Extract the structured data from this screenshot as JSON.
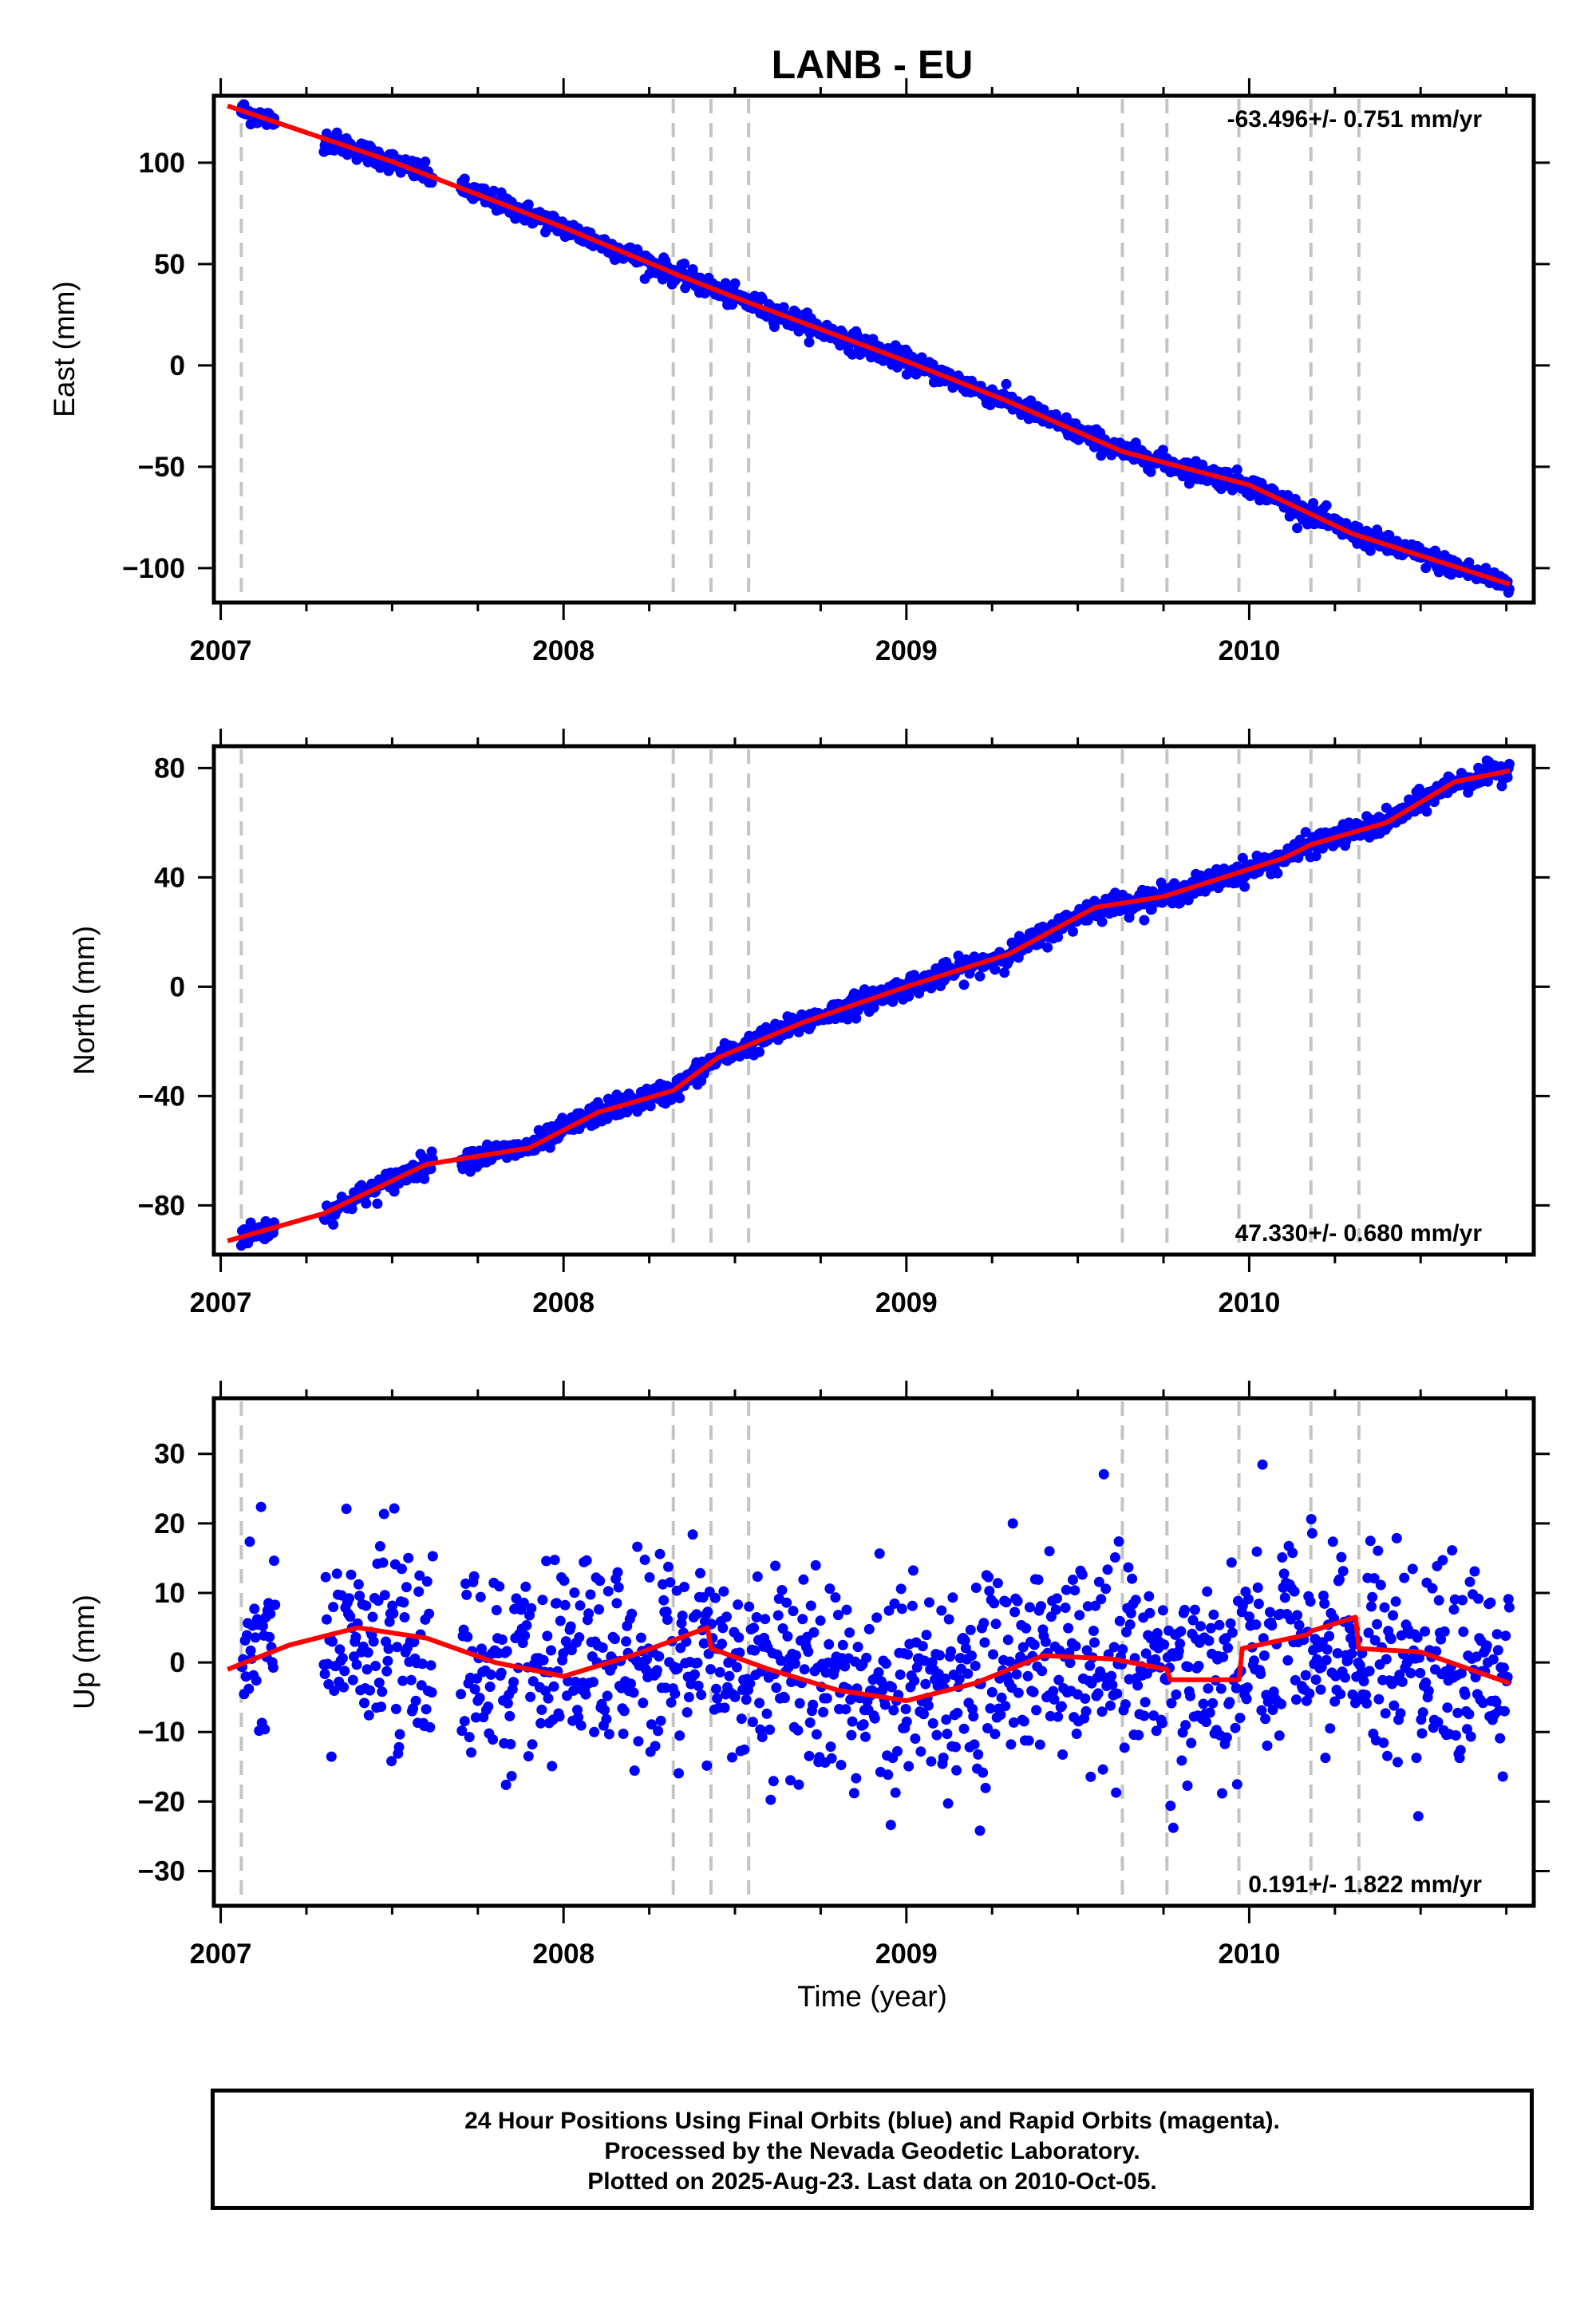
{
  "chart_data": {
    "title": "LANB - EU",
    "type": "scatter",
    "x_axis": {
      "label": "Time (year)",
      "range": [
        2006.98,
        2010.83
      ],
      "ticks": [
        2007,
        2008,
        2009,
        2010
      ],
      "tick_labels": [
        "2007",
        "2008",
        "2009",
        "2010"
      ]
    },
    "event_lines": [
      2007.06,
      2008.32,
      2008.43,
      2008.54,
      2009.63,
      2009.76,
      2009.97,
      2010.18,
      2010.32
    ],
    "colors": {
      "points": "#0000ff",
      "model": "#ff0000",
      "event_lines": "#c4c4c4",
      "rapid_orbits": "#ff00ff"
    },
    "panels": [
      {
        "name": "east",
        "ylabel": "East (mm)",
        "ylim": [
          -117,
          133
        ],
        "yticks": [
          100,
          50,
          0,
          -50,
          -100
        ],
        "ytick_labels": [
          "100",
          "50",
          "0",
          "−50",
          "−100"
        ],
        "rate": "-63.496+/- 0.751 mm/yr",
        "rate_position": "top-right",
        "series": [
          {
            "name": "Final Orbits",
            "style": "points",
            "summary": {
              "start": [
                2007.06,
                128.5
              ],
              "end": [
                2010.76,
                -106
              ],
              "noise_sd_mm": 2.5
            }
          },
          {
            "name": "Model",
            "style": "line",
            "x": [
              2007.02,
              2007.5,
              2008.0,
              2008.3,
              2008.32,
              2008.5,
              2009.0,
              2009.3,
              2009.63,
              2010.0,
              2010.3,
              2010.76
            ],
            "y": [
              128.0,
              100.5,
              68.0,
              47.0,
              45.5,
              33.5,
              2.0,
              -18.0,
              -42.5,
              -59.0,
              -83.0,
              -108.0
            ]
          }
        ]
      },
      {
        "name": "north",
        "ylabel": "North (mm)",
        "ylim": [
          -98,
          88
        ],
        "yticks": [
          80,
          40,
          0,
          -40,
          -80
        ],
        "ytick_labels": [
          "80",
          "40",
          "0",
          "−40",
          "−80"
        ],
        "rate": "47.330+/- 0.680 mm/yr",
        "rate_position": "bottom-right",
        "series": [
          {
            "name": "Final Orbits",
            "style": "points",
            "summary": {
              "start": [
                2007.06,
                -92
              ],
              "end": [
                2010.76,
                80
              ],
              "noise_sd_mm": 2.0
            }
          },
          {
            "name": "Model",
            "style": "line",
            "x": [
              2007.02,
              2007.3,
              2007.6,
              2007.9,
              2008.1,
              2008.32,
              2008.45,
              2008.7,
              2009.0,
              2009.3,
              2009.55,
              2009.75,
              2009.9,
              2010.1,
              2010.18,
              2010.4,
              2010.6,
              2010.76
            ],
            "y": [
              -93.0,
              -83.0,
              -65.0,
              -59.0,
              -46.0,
              -38.0,
              -26.0,
              -13.0,
              0.0,
              12.0,
              29.0,
              33.0,
              39.0,
              47.0,
              52.0,
              60.0,
              75.0,
              79.0
            ]
          }
        ]
      },
      {
        "name": "up",
        "ylabel": "Up (mm)",
        "ylim": [
          -35,
          38
        ],
        "yticks": [
          30,
          20,
          10,
          0,
          -10,
          -20,
          -30
        ],
        "ytick_labels": [
          "30",
          "20",
          "10",
          "0",
          "−10",
          "−20",
          "−30"
        ],
        "rate": "0.191+/- 1.822 mm/yr",
        "rate_position": "bottom-right",
        "series": [
          {
            "name": "Final Orbits",
            "style": "points",
            "summary": {
              "mean_mm": 0,
              "noise_sd_mm": 7.5
            }
          },
          {
            "name": "Model",
            "style": "line",
            "x": [
              2007.02,
              2007.2,
              2007.4,
              2007.6,
              2007.8,
              2008.0,
              2008.2,
              2008.42,
              2008.43,
              2008.6,
              2008.8,
              2009.0,
              2009.2,
              2009.4,
              2009.6,
              2009.76,
              2009.77,
              2009.97,
              2009.98,
              2010.17,
              2010.18,
              2010.31,
              2010.32,
              2010.5,
              2010.76
            ],
            "y": [
              -1.0,
              2.5,
              5.0,
              3.5,
              0.0,
              -2.0,
              1.0,
              5.0,
              2.0,
              -1.0,
              -4.0,
              -5.5,
              -3.0,
              1.0,
              0.5,
              -1.0,
              -2.5,
              -2.5,
              2.0,
              4.0,
              4.5,
              6.5,
              2.0,
              1.5,
              -3.0
            ]
          }
        ]
      }
    ]
  },
  "footer": {
    "line1": "24 Hour Positions Using Final Orbits (blue) and Rapid Orbits (magenta).",
    "line2": "Processed by the Nevada Geodetic Laboratory.",
    "line3": "Plotted on 2025-Aug-23. Last data on 2010-Oct-05."
  }
}
